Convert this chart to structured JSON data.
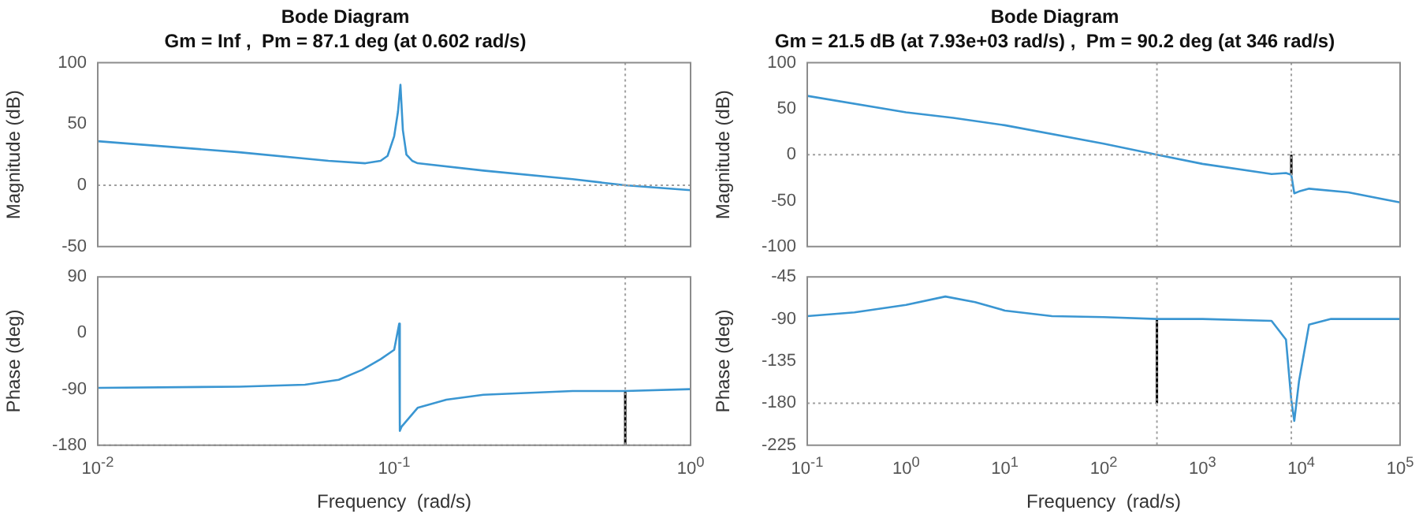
{
  "chart_data": [
    {
      "type": "line",
      "title": "Bode Diagram",
      "subtitle": "Gm = Inf ,  Pm = 87.1 deg (at 0.602 rad/s)",
      "ylabel": "Magnitude (dB)",
      "log": "x",
      "grid": false,
      "legend": false,
      "tick_labels": "y",
      "xlim": [
        0.01,
        1
      ],
      "xticks": [
        {
          "value": 0.01,
          "label": null
        },
        {
          "value": 0.1,
          "label": null
        },
        {
          "value": 1,
          "label": null
        }
      ],
      "ylim": [
        -50,
        100
      ],
      "yticks": [
        -50,
        0,
        50,
        100
      ],
      "ref_lines": [
        {
          "axis": "y",
          "value": 0,
          "color": "#a0a0a0",
          "line_style": "dotted"
        },
        {
          "axis": "x",
          "value": 0.602,
          "color": "#a0a0a0",
          "line_style": "dotted"
        }
      ],
      "series": [
        {
          "color": "#3a96d2",
          "x": [
            0.01,
            0.03,
            0.06,
            0.08,
            0.09,
            0.095,
            0.1,
            0.103,
            0.105,
            0.107,
            0.11,
            0.115,
            0.12,
            0.2,
            0.4,
            0.602,
            1
          ],
          "values": [
            36,
            27,
            20,
            18,
            20,
            24,
            40,
            60,
            82,
            45,
            25,
            20,
            18,
            12,
            5,
            0,
            -4
          ]
        }
      ]
    },
    {
      "type": "line",
      "xlabel": "Frequency  (rad/s)",
      "ylabel": "Phase (deg)",
      "log": "x",
      "grid": false,
      "legend": false,
      "xlim": [
        0.01,
        1
      ],
      "xticks": [
        {
          "value": 0.01,
          "label": "10$^{-2}$"
        },
        {
          "value": 0.1,
          "label": "10$^{-1}$"
        },
        {
          "value": 1,
          "label": "10$^{0}$"
        }
      ],
      "ylim": [
        -180,
        90
      ],
      "yticks": [
        -180,
        -90,
        0,
        90
      ],
      "ref_lines": [
        {
          "axis": "y",
          "value": -180,
          "color": "#a0a0a0",
          "line_style": "dotted"
        },
        {
          "axis": "x",
          "value": 0.602,
          "color": "#a0a0a0",
          "line_style": "dotted"
        }
      ],
      "series": [
        {
          "color": "#3a96d2",
          "x": [
            0.01,
            0.03,
            0.05,
            0.065,
            0.078,
            0.09,
            0.1,
            0.104,
            0.1045,
            0.106,
            0.12,
            0.15,
            0.2,
            0.4,
            0.602,
            1
          ],
          "values": [
            -88,
            -86,
            -83,
            -75,
            -59,
            -42,
            -27,
            15,
            -157,
            -150,
            -120,
            -107,
            -99,
            -93,
            -93,
            -90
          ]
        },
        {
          "color": "#000000",
          "x": [
            0.602,
            0.602
          ],
          "values": [
            -180,
            -93
          ]
        }
      ]
    },
    {
      "type": "line",
      "title": "Bode Diagram",
      "subtitle": "Gm = 21.5 dB (at 7.93e+03 rad/s) ,  Pm = 90.2 deg (at 346 rad/s)",
      "ylabel": "Magnitude (dB)",
      "log": "x",
      "grid": false,
      "legend": false,
      "tick_labels": "y",
      "xlim": [
        0.1,
        100000
      ],
      "xticks": [
        {
          "value": 0.1,
          "label": null
        },
        {
          "value": 1,
          "label": null
        },
        {
          "value": 10,
          "label": null
        },
        {
          "value": 100,
          "label": null
        },
        {
          "value": 1000,
          "label": null
        },
        {
          "value": 10000,
          "label": null
        },
        {
          "value": 100000,
          "label": null
        }
      ],
      "ylim": [
        -100,
        100
      ],
      "yticks": [
        -100,
        -50,
        0,
        50,
        100
      ],
      "ref_lines": [
        {
          "axis": "y",
          "value": 0,
          "color": "#a0a0a0",
          "line_style": "dotted"
        },
        {
          "axis": "x",
          "value": 346,
          "color": "#a0a0a0",
          "line_style": "dotted"
        },
        {
          "axis": "x",
          "value": 7930,
          "color": "#a0a0a0",
          "line_style": "dotted"
        }
      ],
      "series": [
        {
          "color": "#3a96d2",
          "x": [
            0.1,
            1,
            3,
            10,
            100,
            346,
            1000,
            5000,
            7000,
            7930,
            8500,
            9500,
            12000,
            30000,
            100000
          ],
          "values": [
            64,
            46,
            40,
            32,
            12,
            0,
            -10,
            -21,
            -20,
            -22,
            -42,
            -40,
            -37,
            -41,
            -52
          ]
        },
        {
          "color": "#000000",
          "x": [
            7930,
            7930
          ],
          "values": [
            -22,
            0
          ]
        }
      ]
    },
    {
      "type": "line",
      "xlabel": "Frequency  (rad/s)",
      "ylabel": "Phase (deg)",
      "log": "x",
      "grid": false,
      "legend": false,
      "xlim": [
        0.1,
        100000
      ],
      "xticks": [
        {
          "value": 0.1,
          "label": "10$^{-1}$"
        },
        {
          "value": 1,
          "label": "10$^{0}$"
        },
        {
          "value": 10,
          "label": "10$^{1}$"
        },
        {
          "value": 100,
          "label": "10$^{2}$"
        },
        {
          "value": 1000,
          "label": "10$^{3}$"
        },
        {
          "value": 10000,
          "label": "10$^{4}$"
        },
        {
          "value": 100000,
          "label": "10$^{5}$"
        }
      ],
      "ylim": [
        -225,
        -45
      ],
      "yticks": [
        -225,
        -180,
        -135,
        -90,
        -45
      ],
      "ref_lines": [
        {
          "axis": "y",
          "value": -180,
          "color": "#a0a0a0",
          "line_style": "dotted"
        },
        {
          "axis": "x",
          "value": 346,
          "color": "#a0a0a0",
          "line_style": "dotted"
        },
        {
          "axis": "x",
          "value": 7930,
          "color": "#a0a0a0",
          "line_style": "dotted"
        }
      ],
      "series": [
        {
          "color": "#3a96d2",
          "x": [
            0.1,
            0.3,
            1,
            2.5,
            5,
            10,
            30,
            100,
            346,
            1000,
            5000,
            7000,
            7930,
            8500,
            9500,
            12000,
            20000,
            100000
          ],
          "values": [
            -87,
            -83,
            -75,
            -66,
            -72,
            -81,
            -87,
            -88,
            -90,
            -90,
            -92,
            -112,
            -177,
            -199,
            -156,
            -96,
            -90,
            -90
          ]
        },
        {
          "color": "#000000",
          "x": [
            346,
            346
          ],
          "values": [
            -180,
            -90
          ]
        }
      ]
    }
  ]
}
